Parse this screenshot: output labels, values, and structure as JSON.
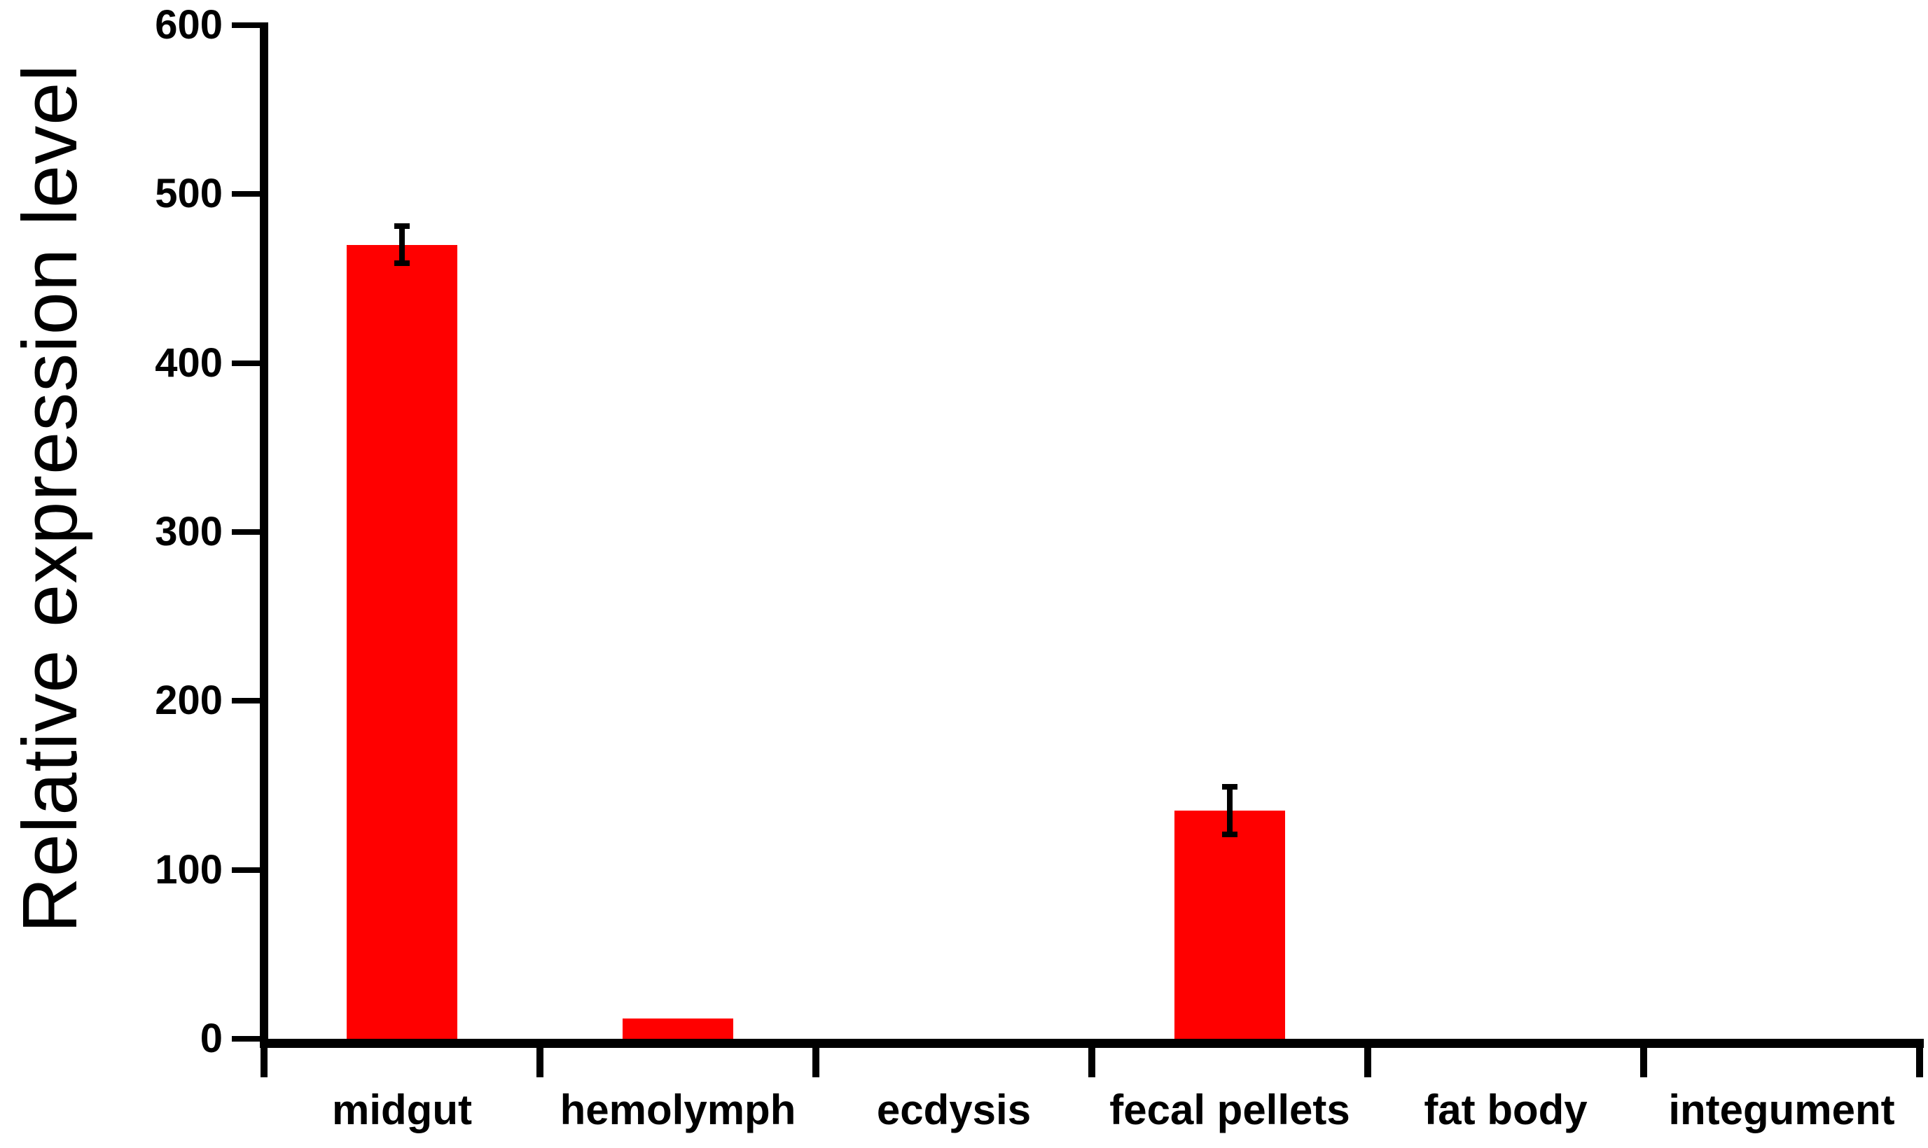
{
  "chart_data": {
    "type": "bar",
    "title": "",
    "ylabel": "Relative expression level",
    "xlabel": "",
    "categories": [
      "midgut",
      "hemolymph",
      "ecdysis",
      "fecal pellets",
      "fat body",
      "integument"
    ],
    "values": [
      470,
      12,
      0,
      135,
      0,
      0
    ],
    "errors": [
      11,
      0,
      0,
      14,
      0,
      0
    ],
    "ylim": [
      0,
      600
    ],
    "yticks": [
      0,
      100,
      200,
      300,
      400,
      500,
      600
    ],
    "grid": false,
    "legend_position": "none",
    "bar_color": "#ff0000",
    "error_bar_color": "#000000",
    "axis_color": "#000000"
  }
}
